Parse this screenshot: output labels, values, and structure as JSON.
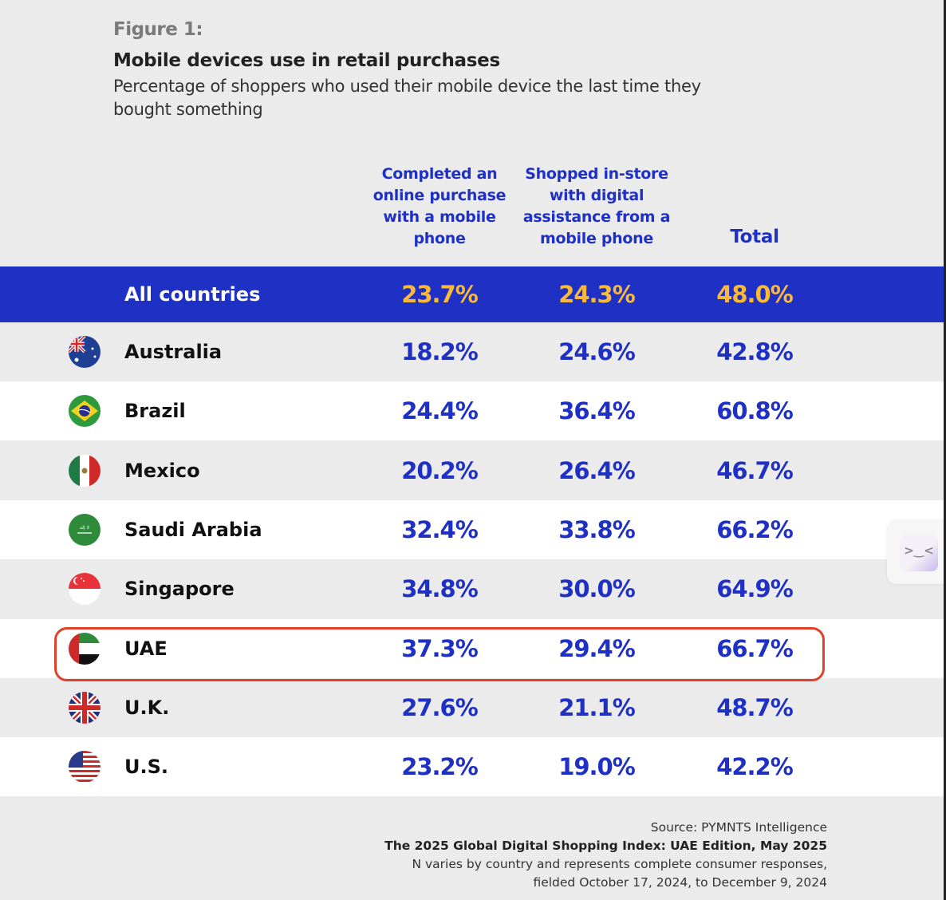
{
  "figure_label": "Figure 1:",
  "title": "Mobile devices use in retail purchases",
  "subtitle": "Percentage of shoppers who used their mobile device the last time they bought something",
  "chart_data": {
    "type": "table",
    "columns": [
      "Completed an online purchase with a mobile phone",
      "Shopped in-store with digital assistance from a mobile phone",
      "Total"
    ],
    "summary": {
      "label": "All countries",
      "values": [
        "23.7%",
        "24.3%",
        "48.0%"
      ]
    },
    "rows": [
      {
        "country": "Australia",
        "flag": "australia-flag",
        "values": [
          "18.2%",
          "24.6%",
          "42.8%"
        ]
      },
      {
        "country": "Brazil",
        "flag": "brazil-flag",
        "values": [
          "24.4%",
          "36.4%",
          "60.8%"
        ]
      },
      {
        "country": "Mexico",
        "flag": "mexico-flag",
        "values": [
          "20.2%",
          "26.4%",
          "46.7%"
        ]
      },
      {
        "country": "Saudi Arabia",
        "flag": "saudi-arabia-flag",
        "values": [
          "32.4%",
          "33.8%",
          "66.2%"
        ]
      },
      {
        "country": "Singapore",
        "flag": "singapore-flag",
        "values": [
          "34.8%",
          "30.0%",
          "64.9%"
        ]
      },
      {
        "country": "UAE",
        "flag": "uae-flag",
        "values": [
          "37.3%",
          "29.4%",
          "66.7%"
        ],
        "highlighted": true
      },
      {
        "country": "U.K.",
        "flag": "uk-flag",
        "values": [
          "27.6%",
          "21.1%",
          "48.7%"
        ]
      },
      {
        "country": "U.S.",
        "flag": "us-flag",
        "values": [
          "23.2%",
          "19.0%",
          "42.2%"
        ]
      }
    ],
    "highlight_color": "#e0412a"
  },
  "footer": {
    "source": "Source: PYMNTS Intelligence",
    "report": "The 2025 Global Digital Shopping Index: UAE Edition, May 2025",
    "note1": "N varies by country and represents complete consumer responses,",
    "note2": "fielded October 17, 2024, to December 9, 2024"
  },
  "colors": {
    "accent": "#1f30c4",
    "summary_value": "#f9b93b",
    "background": "#ebebeb"
  }
}
